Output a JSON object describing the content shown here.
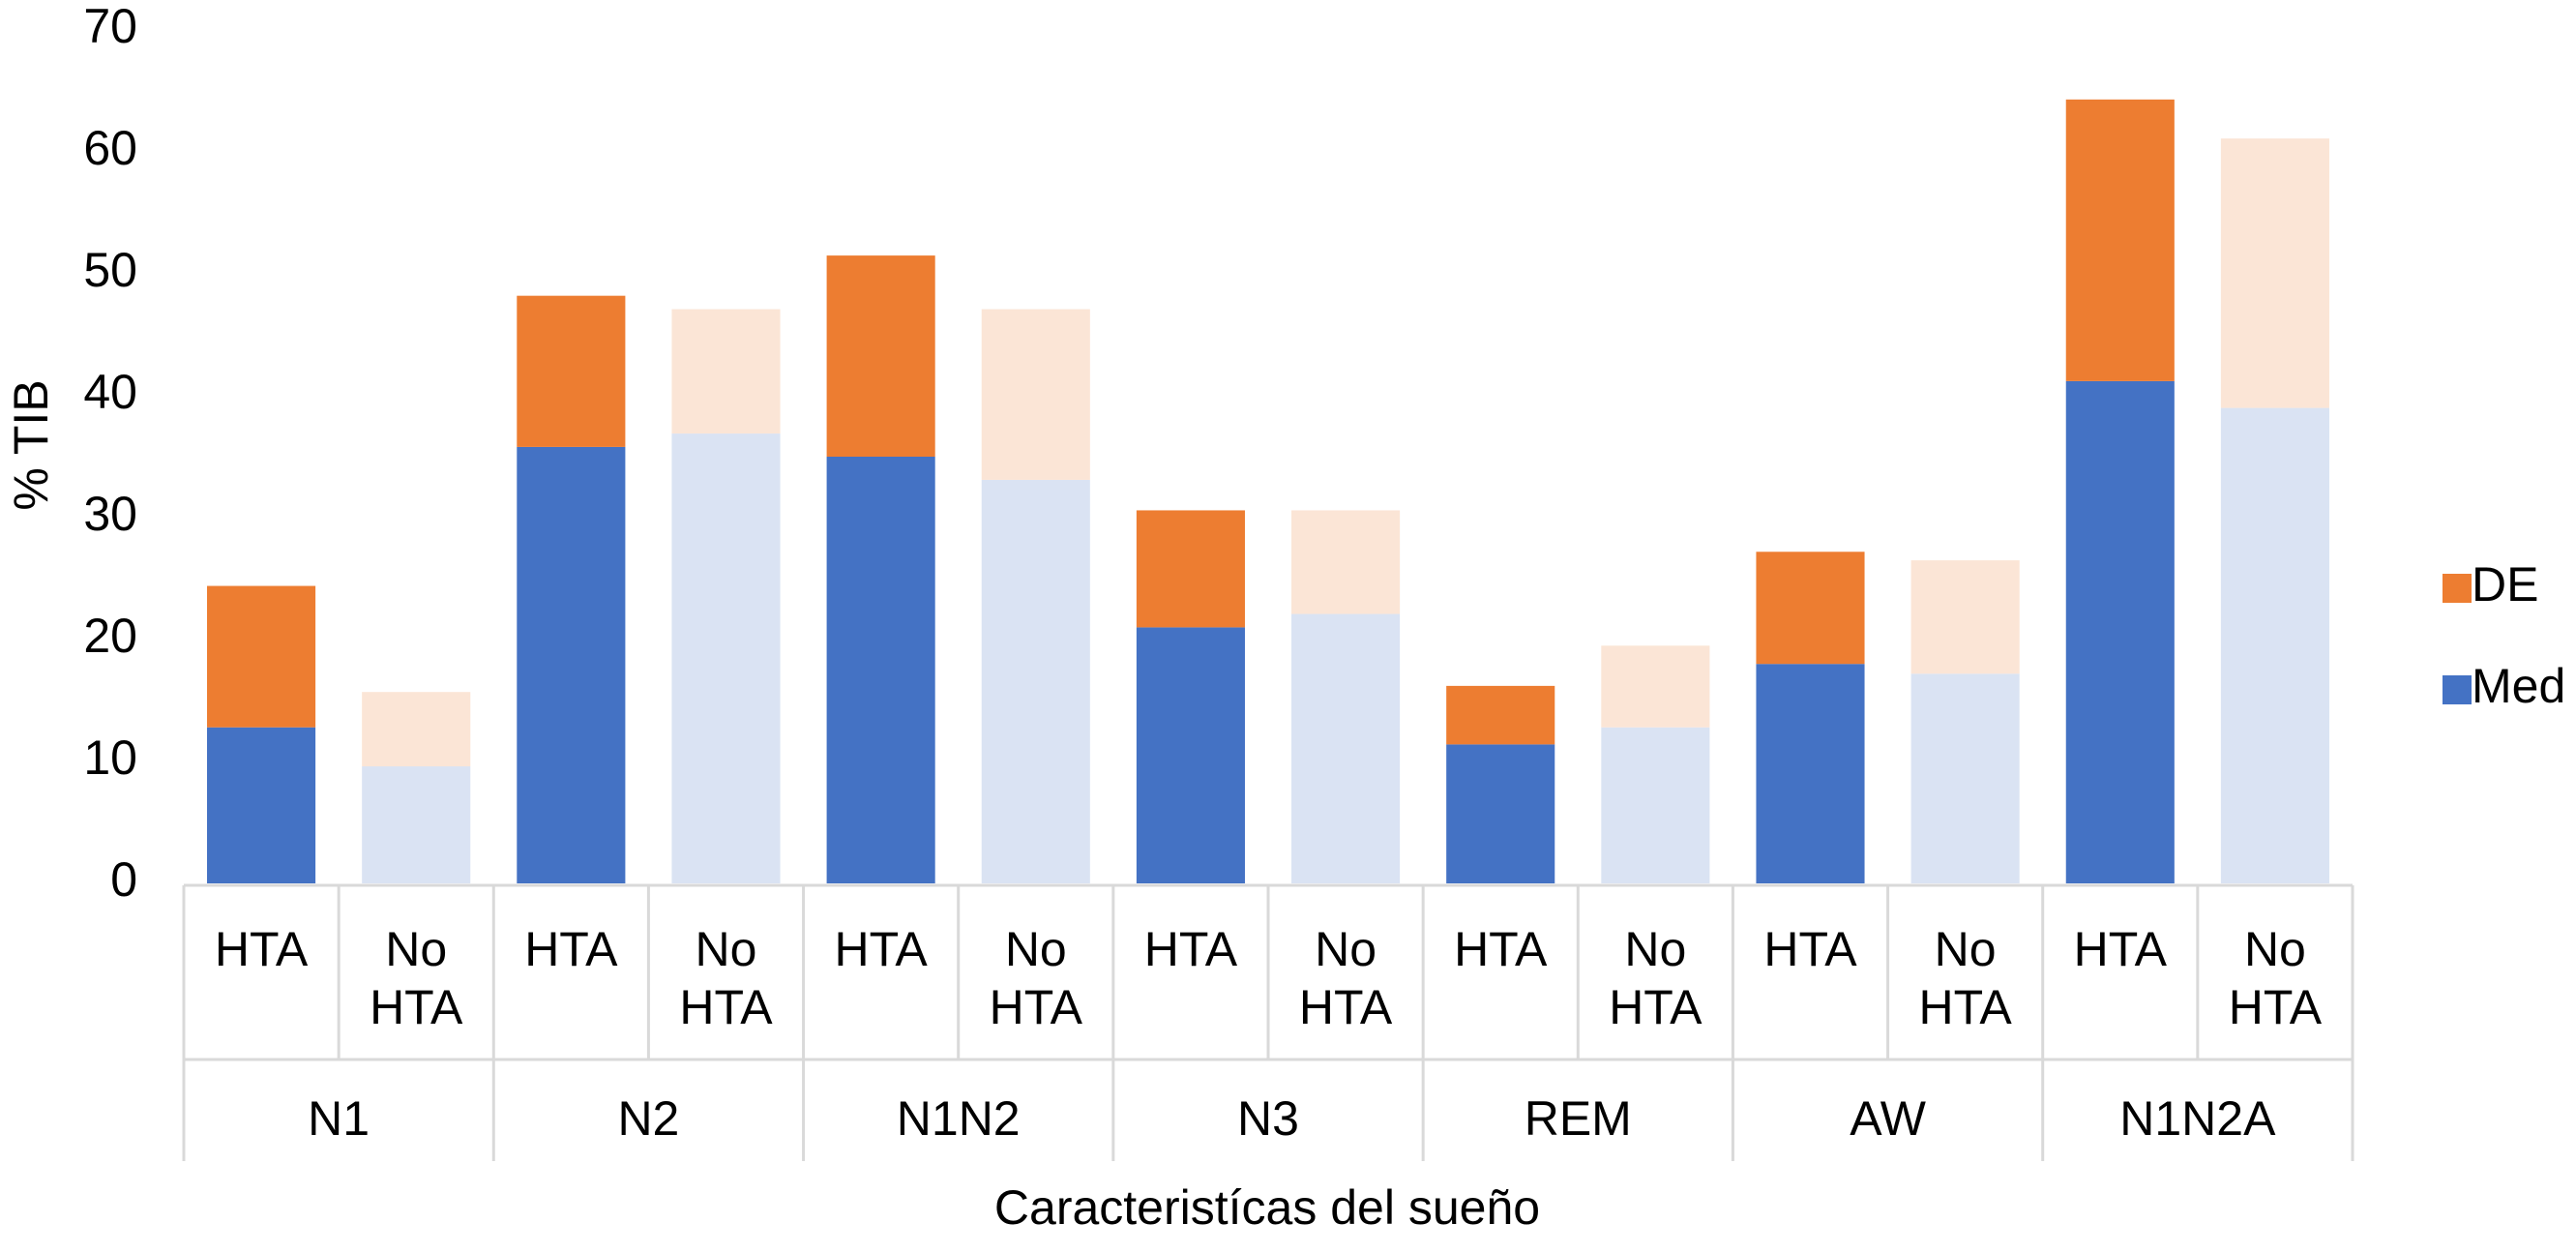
{
  "chart_data": {
    "type": "stacked_bar",
    "y_label": "% TIB",
    "x_label": "Caracteristícas del sueño",
    "categories": [
      "HTA",
      "No HTA",
      "HTA",
      "No HTA",
      "HTA",
      "No HTA",
      "HTA",
      "No HTA",
      "HTA",
      "No HTA",
      "HTA",
      "No HTA",
      "HTA",
      "No HTA"
    ],
    "groups": [
      "N1",
      "N2",
      "N1N2",
      "N3",
      "REM",
      "AW",
      "N1N2A"
    ],
    "series": [
      {
        "name": "Med",
        "color": "#4472c4",
        "colors": [
          "#4472c4",
          "#dae3f3",
          "#4472c4",
          "#dae3f3",
          "#4472c4",
          "#dae3f3",
          "#4472c4",
          "#dae3f3",
          "#4472c4",
          "#dae3f3",
          "#4472c4",
          "#dae3f3",
          "#4472c4",
          "#dae3f3"
        ],
        "values": [
          12.8,
          9.6,
          35.8,
          36.9,
          35.0,
          33.1,
          21.0,
          22.1,
          11.4,
          12.8,
          18.0,
          17.2,
          41.2,
          39.0
        ]
      },
      {
        "name": "DE",
        "color": "#ed7d31",
        "colors": [
          "#ed7d31",
          "#fbe5d6",
          "#ed7d31",
          "#fbe5d6",
          "#ed7d31",
          "#fbe5d6",
          "#ed7d31",
          "#fbe5d6",
          "#ed7d31",
          "#fbe5d6",
          "#ed7d31",
          "#fbe5d6",
          "#ed7d31",
          "#fbe5d6"
        ],
        "values": [
          11.6,
          6.1,
          12.4,
          10.2,
          16.5,
          14.0,
          9.6,
          8.5,
          4.8,
          6.7,
          9.2,
          9.3,
          23.1,
          22.1
        ]
      }
    ],
    "ylim": [
      0,
      70
    ],
    "yticks": [
      0,
      10,
      20,
      30,
      40,
      50,
      60,
      70
    ],
    "grid": false,
    "legend_position": "right"
  }
}
